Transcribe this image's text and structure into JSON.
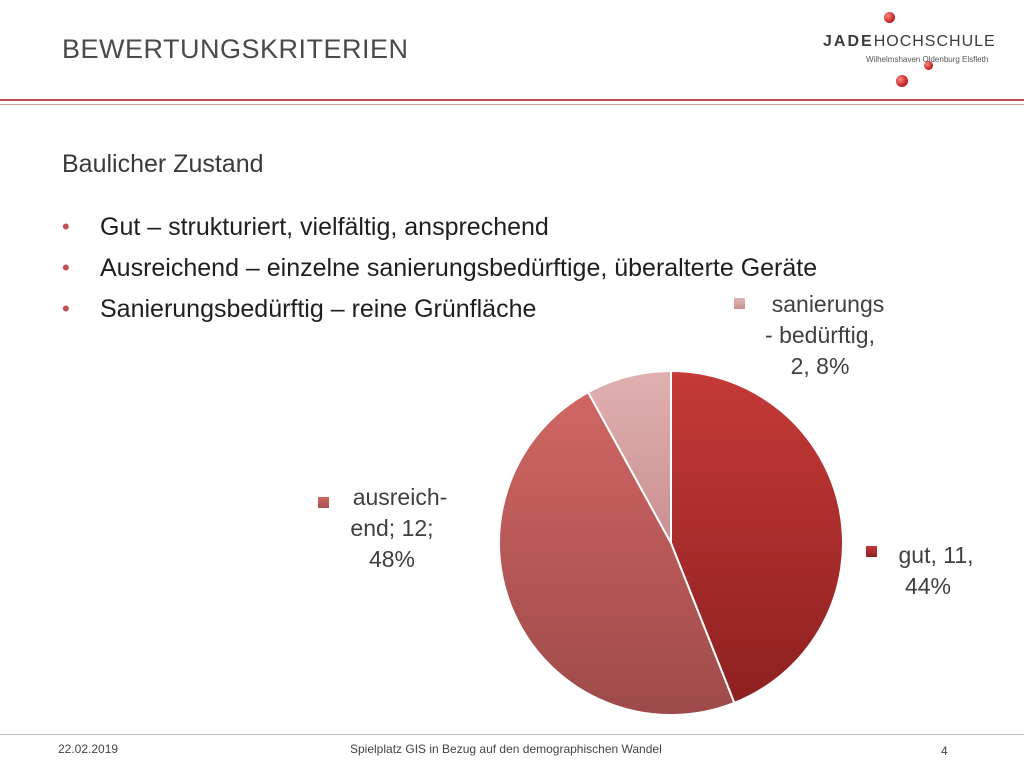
{
  "slide": {
    "title": "BEWERTUNGSKRITERIEN",
    "subtitle": "Baulicher Zustand",
    "bullets": [
      "Gut – strukturiert, vielfältig, ansprechend",
      "Ausreichend – einzelne sanierungsbedürftige, überalterte Geräte",
      "Sanierungsbedürftig – reine Grünfläche"
    ]
  },
  "logo": {
    "name_bold": "JADE",
    "name_rest": "HOCHSCHULE",
    "subline": "Wilhelmshaven Oldenburg Elsfleth"
  },
  "footer": {
    "date": "22.02.2019",
    "center": "Spielplatz GIS in Bezug auf den demographischen Wandel",
    "page": "4"
  },
  "colors": {
    "accent": "#c0504d",
    "gut": "#b42f2f",
    "ausreichend": "#c25553",
    "sanierungsbeduerftig": "#d9a3a3"
  },
  "chart_data": {
    "type": "pie",
    "title": "",
    "slices": [
      {
        "name": "gut",
        "value": 11,
        "percent": 44,
        "label_lines": [
          "gut, 11,",
          "44%"
        ]
      },
      {
        "name": "ausreichend",
        "value": 12,
        "percent": 48,
        "label_lines": [
          "ausreich-",
          "end; 12;",
          "48%"
        ]
      },
      {
        "name": "sanierungsbedürftig",
        "value": 2,
        "percent": 8,
        "label_lines": [
          "sanierungs",
          "- bedürftig,",
          "2, 8%"
        ]
      }
    ],
    "start_angle_deg": 0,
    "direction": "clockwise"
  }
}
